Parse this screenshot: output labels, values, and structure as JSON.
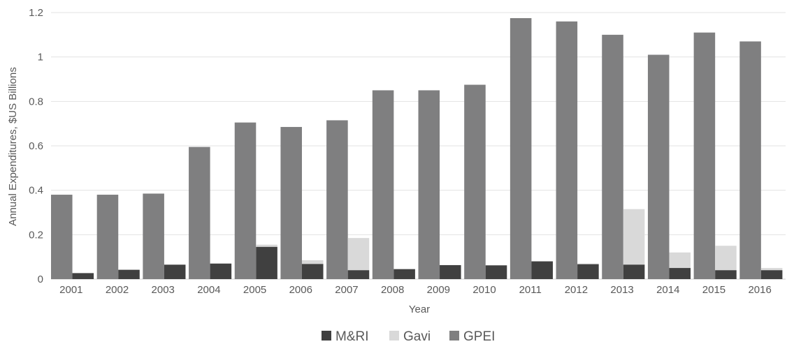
{
  "chart_data": {
    "type": "bar",
    "xlabel": "Year",
    "ylabel": "Annual Expenditures, $US Billions",
    "ylim": [
      0,
      1.2
    ],
    "yticks": [
      0,
      0.2,
      0.4,
      0.6,
      0.8,
      1,
      1.2
    ],
    "ytick_labels": [
      "0",
      "0.2",
      "0.4",
      "0.6",
      "0.8",
      "1",
      "1.2"
    ],
    "grid": true,
    "legend_position": "bottom",
    "categories": [
      "2001",
      "2002",
      "2003",
      "2004",
      "2005",
      "2006",
      "2007",
      "2008",
      "2009",
      "2010",
      "2011",
      "2012",
      "2013",
      "2014",
      "2015",
      "2016"
    ],
    "series": [
      {
        "name": "GPEI",
        "color": "#7f7f80",
        "values": [
          0.38,
          0.38,
          0.385,
          0.595,
          0.705,
          0.685,
          0.715,
          0.85,
          0.85,
          0.875,
          1.175,
          1.16,
          1.1,
          1.01,
          1.11,
          1.07
        ]
      },
      {
        "name": "Gavi",
        "color": "#d9d9d9",
        "values": [
          0,
          0,
          0,
          0,
          0.155,
          0.085,
          0.185,
          0,
          0,
          0,
          0,
          0.07,
          0.315,
          0.12,
          0.15,
          0.05
        ]
      },
      {
        "name": "M&RI",
        "color": "#404040",
        "values": [
          0.027,
          0.042,
          0.065,
          0.07,
          0.145,
          0.068,
          0.04,
          0.045,
          0.063,
          0.062,
          0.08,
          0.067,
          0.065,
          0.05,
          0.04,
          0.04
        ]
      }
    ],
    "legend_order": [
      "M&RI",
      "Gavi",
      "GPEI"
    ]
  }
}
